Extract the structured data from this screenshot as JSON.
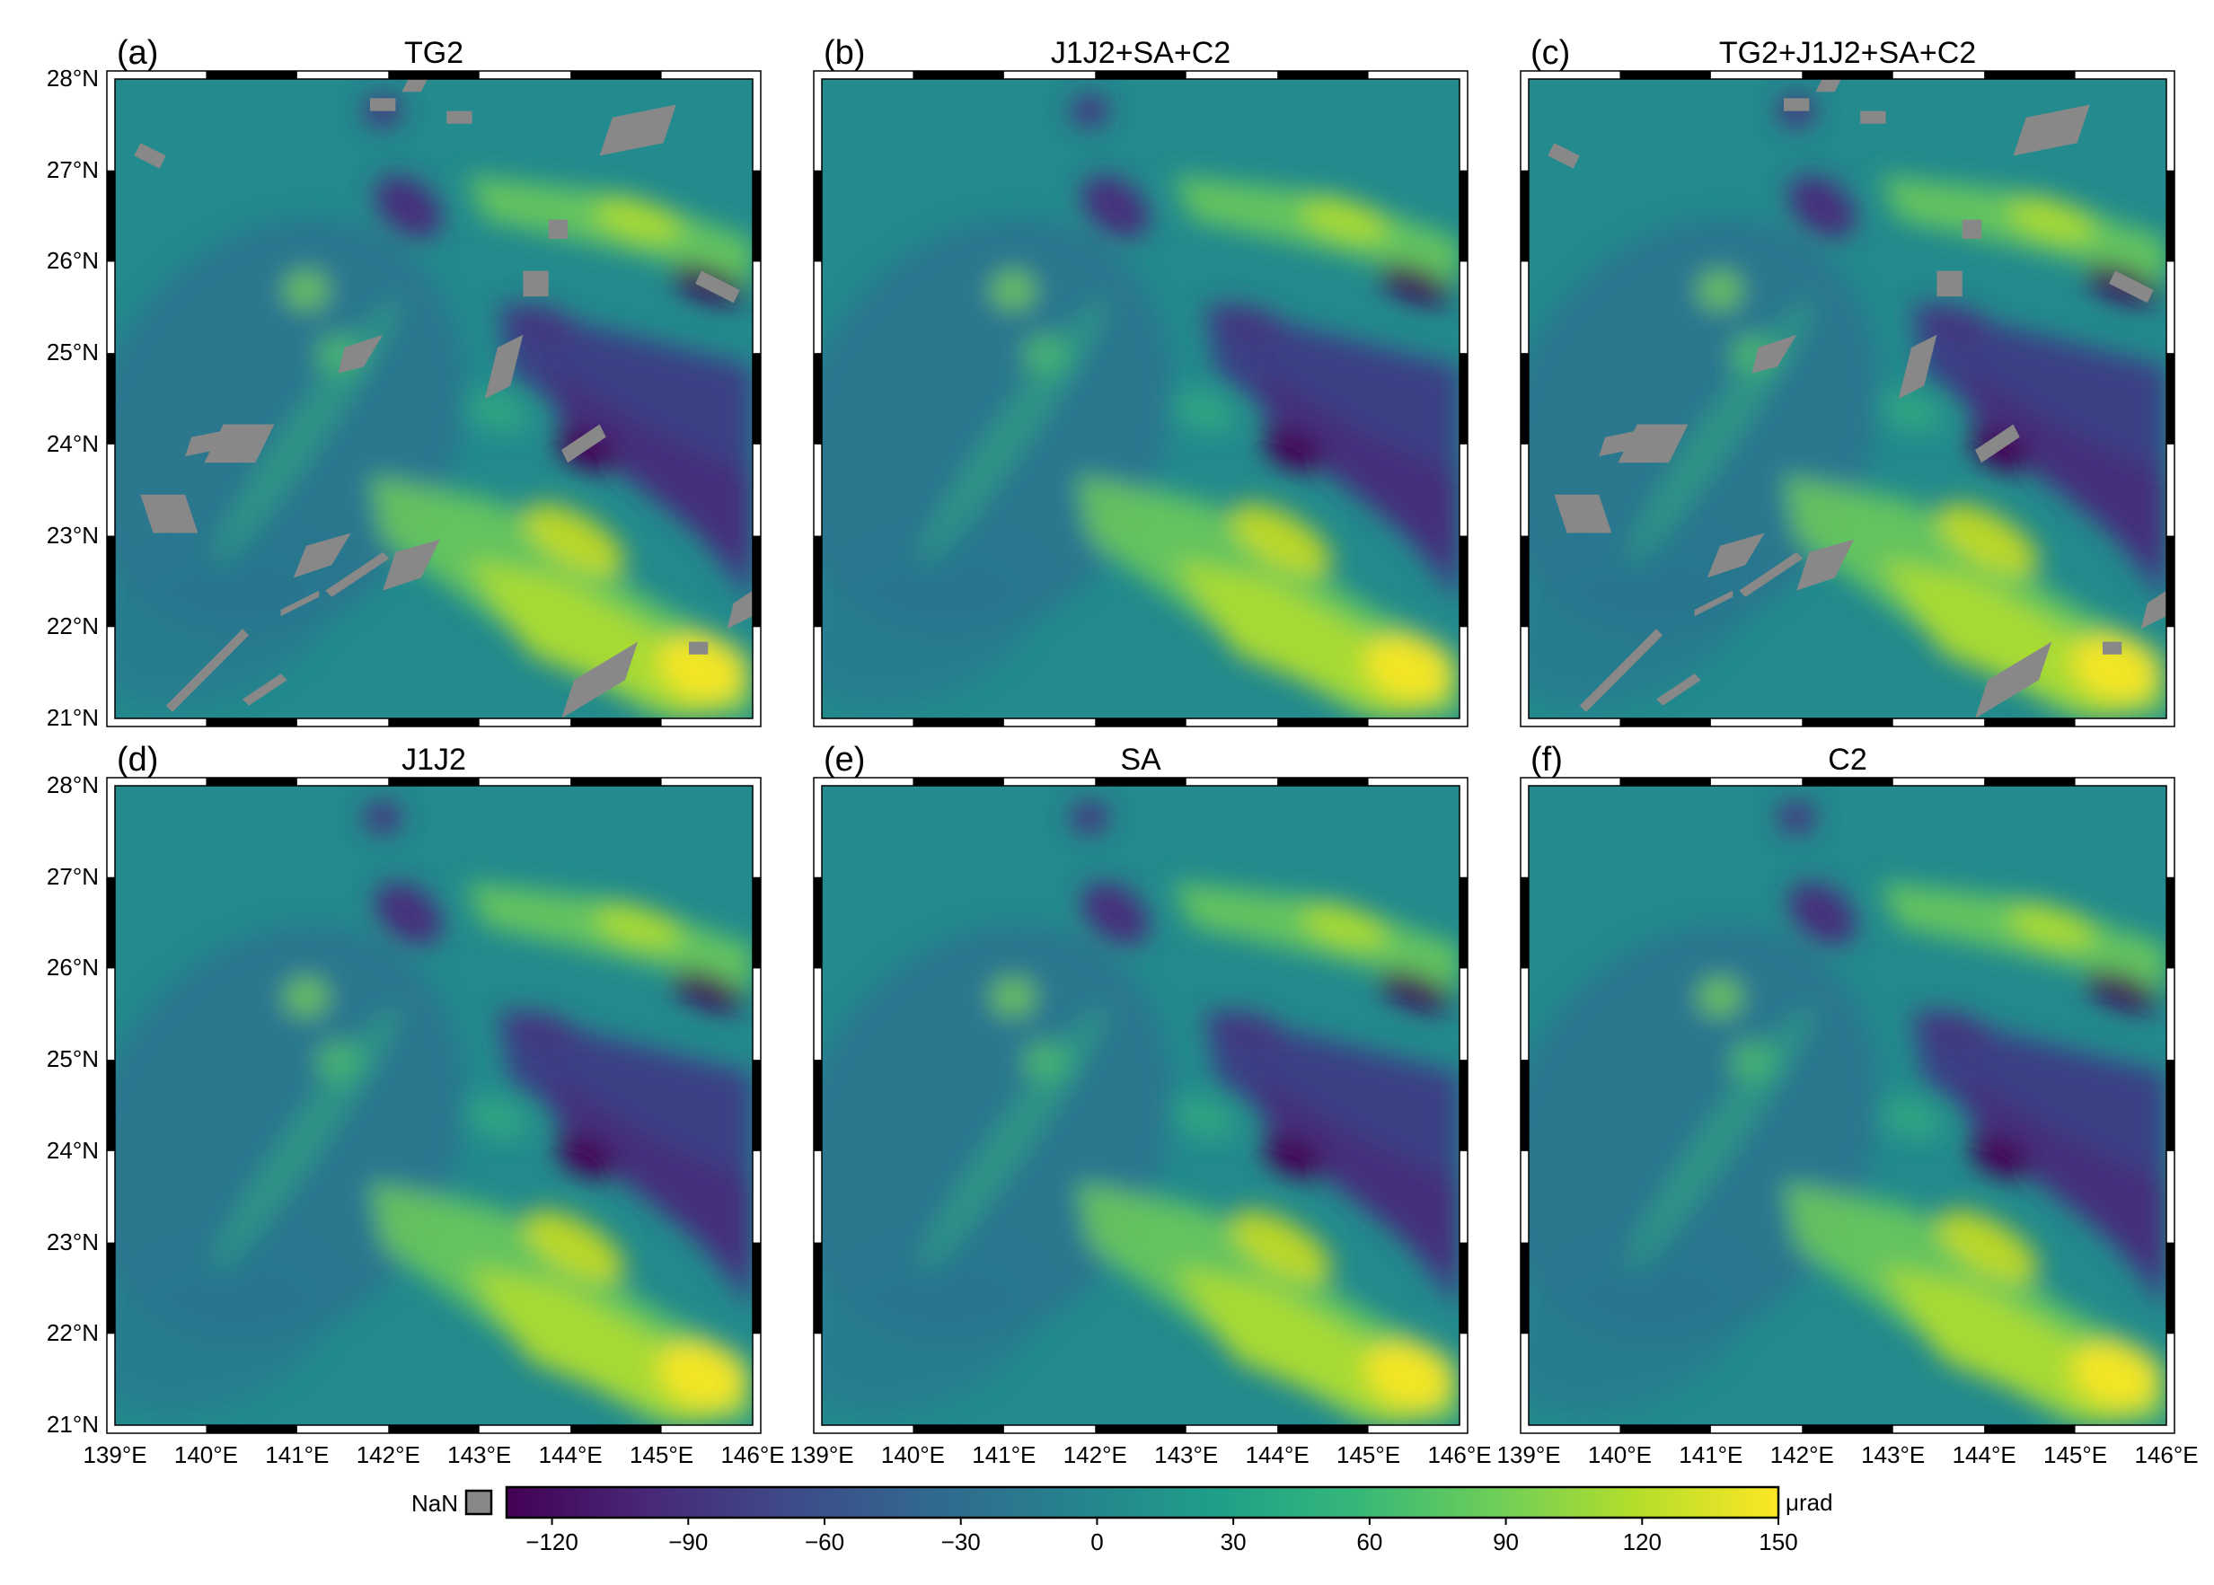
{
  "colors": {
    "nan": "#888888",
    "frame": "#000000",
    "colormap": [
      "#440154",
      "#482878",
      "#3e4a89",
      "#31688e",
      "#26828e",
      "#1f9e89",
      "#35b779",
      "#6ece58",
      "#b5de2b",
      "#fde725"
    ]
  },
  "panels": [
    {
      "letter": "(a)",
      "title": "TG2",
      "has_gaps": true,
      "gap_set": "main"
    },
    {
      "letter": "(b)",
      "title": "J1J2+SA+C2",
      "has_gaps": false,
      "gap_set": "none"
    },
    {
      "letter": "(c)",
      "title": "TG2+J1J2+SA+C2",
      "has_gaps": true,
      "gap_set": "main"
    },
    {
      "letter": "(d)",
      "title": "J1J2",
      "has_gaps": false,
      "gap_set": "none"
    },
    {
      "letter": "(e)",
      "title": "SA",
      "has_gaps": false,
      "gap_set": "none"
    },
    {
      "letter": "(f)",
      "title": "C2",
      "has_gaps": false,
      "gap_set": "none"
    }
  ],
  "lat_labels": [
    "28°N",
    "27°N",
    "26°N",
    "25°N",
    "24°N",
    "23°N",
    "22°N",
    "21°N"
  ],
  "lon_labels": [
    "139°E",
    "140°E",
    "141°E",
    "142°E",
    "143°E",
    "144°E",
    "145°E",
    "146°E"
  ],
  "colorbar": {
    "ticks": [
      "−120",
      "−90",
      "−60",
      "−30",
      "0",
      "30",
      "60",
      "90",
      "120",
      "150"
    ],
    "tick_values": [
      -120,
      -90,
      -60,
      -30,
      0,
      30,
      60,
      90,
      120,
      150
    ],
    "range": [
      -130,
      150
    ],
    "unit": "μrad",
    "nan_label": "NaN"
  }
}
